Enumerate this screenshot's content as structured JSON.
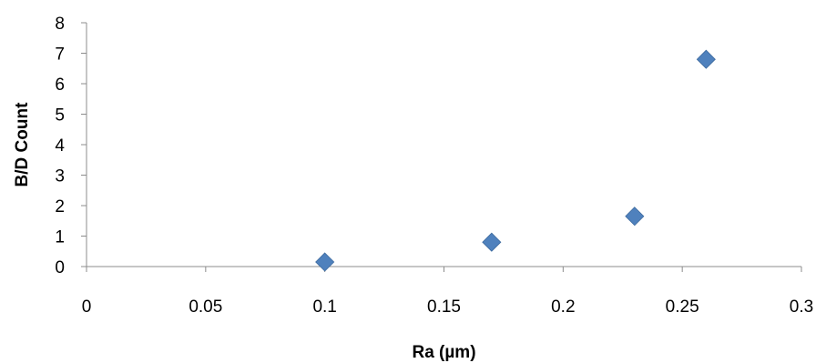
{
  "chart_data": {
    "type": "scatter",
    "title": "",
    "xlabel": "Ra (µm)",
    "ylabel": "B/D Count",
    "xlim": [
      0,
      0.3
    ],
    "ylim": [
      0,
      8
    ],
    "x_ticks": [
      0,
      0.05,
      0.1,
      0.15,
      0.2,
      0.25,
      0.3
    ],
    "x_tick_labels": [
      "0",
      "0.05",
      "0.1",
      "0.15",
      "0.2",
      "0.25",
      "0.3"
    ],
    "y_ticks": [
      0,
      1,
      2,
      3,
      4,
      5,
      6,
      7,
      8
    ],
    "y_tick_labels": [
      "0",
      "1",
      "2",
      "3",
      "4",
      "5",
      "6",
      "7",
      "8"
    ],
    "grid": false,
    "legend": "none",
    "marker": "diamond",
    "marker_color": "#4f81bd",
    "series": [
      {
        "x": [
          0.1,
          0.17,
          0.23,
          0.26
        ],
        "y": [
          0.15,
          0.8,
          1.65,
          6.8
        ]
      }
    ]
  }
}
